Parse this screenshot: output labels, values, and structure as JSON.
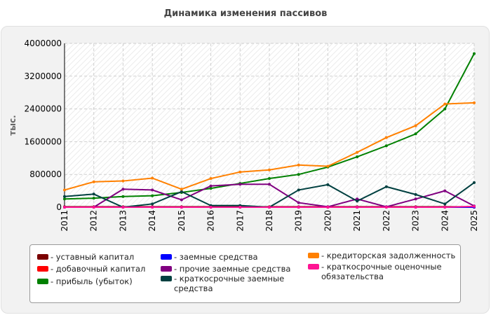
{
  "title": "Динамика изменения пассивов",
  "chart_data": {
    "type": "line",
    "title": "Динамика изменения пассивов",
    "ylabel": "тыс.",
    "xlabel": "",
    "ylim": [
      0,
      4000000
    ],
    "yticks": [
      0,
      800000,
      1600000,
      2400000,
      3200000,
      4000000
    ],
    "ytick_labels": [
      "0",
      "800000",
      "1600000",
      "2400000",
      "3200000",
      "4000000"
    ],
    "grid": true,
    "legend_position": "bottom",
    "x": [
      "2011",
      "2012",
      "2013",
      "2014",
      "2015",
      "2016",
      "2017",
      "2018",
      "2019",
      "2020",
      "2021",
      "2022",
      "2023",
      "2024",
      "2025"
    ],
    "series": [
      {
        "name": "- уставный капитал",
        "color": "#7a0000",
        "values": [
          10000,
          10000,
          10000,
          10000,
          10000,
          10000,
          10000,
          10000,
          10000,
          10000,
          10000,
          10000,
          10000,
          10000,
          10000
        ]
      },
      {
        "name": "- добавочный капитал",
        "color": "#ff0000",
        "values": [
          0,
          0,
          0,
          0,
          0,
          0,
          0,
          0,
          0,
          0,
          0,
          0,
          0,
          0,
          0
        ]
      },
      {
        "name": "- прибыль (убыток)",
        "color": "#008000",
        "values": [
          200000,
          220000,
          260000,
          280000,
          360000,
          460000,
          580000,
          700000,
          800000,
          980000,
          1230000,
          1500000,
          1790000,
          2400000,
          3750000
        ]
      },
      {
        "name": "- заемные средства",
        "color": "#0000ff",
        "values": [
          0,
          0,
          0,
          0,
          0,
          0,
          0,
          0,
          0,
          0,
          0,
          0,
          0,
          0,
          0
        ]
      },
      {
        "name": "- прочие заемные средства",
        "color": "#800080",
        "values": [
          0,
          0,
          440000,
          420000,
          180000,
          520000,
          560000,
          560000,
          110000,
          10000,
          200000,
          10000,
          200000,
          400000,
          30000
        ]
      },
      {
        "name": "- краткосрочные заемные средства",
        "color": "#004040",
        "values": [
          260000,
          320000,
          0,
          80000,
          380000,
          40000,
          40000,
          0,
          420000,
          550000,
          150000,
          500000,
          310000,
          80000,
          600000
        ]
      },
      {
        "name": "- кредиторская задолженность",
        "color": "#ff8000",
        "values": [
          420000,
          620000,
          640000,
          710000,
          440000,
          700000,
          860000,
          910000,
          1030000,
          1000000,
          1340000,
          1700000,
          1990000,
          2520000,
          2550000
        ]
      },
      {
        "name": "- краткосрочные оценочные обязательства",
        "color": "#ff1493",
        "values": [
          0,
          0,
          0,
          0,
          0,
          0,
          0,
          0,
          0,
          0,
          0,
          0,
          0,
          0,
          20000
        ]
      }
    ]
  }
}
